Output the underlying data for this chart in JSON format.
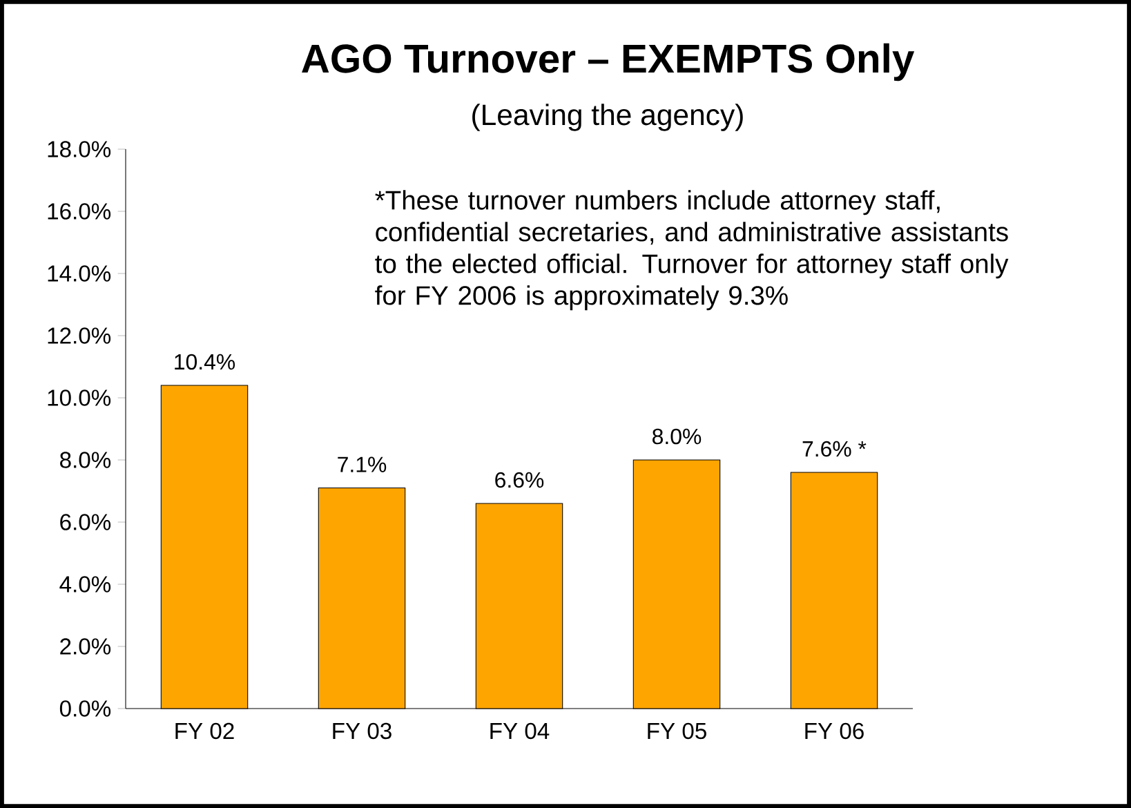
{
  "chart_data": {
    "type": "bar",
    "title": "AGO Turnover – EXEMPTS Only",
    "subtitle": "(Leaving the agency)",
    "annotations": [
      "*These turnover numbers include attorney staff, confidential secretaries, and administrative assistants to the elected official.  Turnover for attorney staff only for FY 2006 is approximately 9.3%"
    ],
    "categories": [
      "FY 02",
      "FY 03",
      "FY 04",
      "FY 05",
      "FY 06"
    ],
    "values": [
      10.4,
      7.1,
      6.6,
      8.0,
      7.6
    ],
    "value_labels": [
      "10.4%",
      "7.1%",
      "6.6%",
      "8.0%",
      "7.6% *"
    ],
    "color": "#ffa500",
    "ylim": [
      0,
      18
    ],
    "yticks": [
      {
        "value": 0,
        "label": "0.0%"
      },
      {
        "value": 2,
        "label": "2.0%"
      },
      {
        "value": 4,
        "label": "4.0%"
      },
      {
        "value": 6,
        "label": "6.0%"
      },
      {
        "value": 8,
        "label": "8.0%"
      },
      {
        "value": 10,
        "label": "10.0%"
      },
      {
        "value": 12,
        "label": "12.0%"
      },
      {
        "value": 14,
        "label": "14.0%"
      },
      {
        "value": 16,
        "label": "16.0%"
      },
      {
        "value": 18,
        "label": "18.0%"
      }
    ]
  }
}
